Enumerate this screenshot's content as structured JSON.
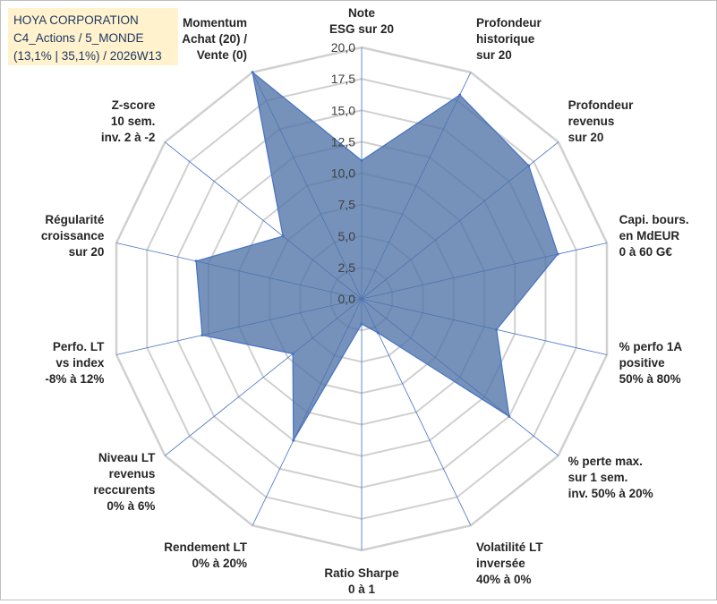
{
  "title_box": {
    "line1": "HOYA CORPORATION",
    "line2": "C4_Actions / 5_MONDE",
    "line3": "(13,1% | 35,1%) / 2026W13"
  },
  "colors": {
    "grid": "#d0d0d0",
    "spoke": "#4472c4",
    "fill": "#4f73a8",
    "stroke": "#4472c4",
    "label": "#262626",
    "title_bg": "#fff2cc",
    "title_text": "#1f3864"
  },
  "chart_data": {
    "type": "radar",
    "title": "",
    "rmin": 0,
    "rmax": 20,
    "tick_step": 2.5,
    "tick_labels": [
      "0,0",
      "2,5",
      "5,0",
      "7,5",
      "10,0",
      "12,5",
      "15,0",
      "17,5",
      "20,0"
    ],
    "axes": [
      {
        "lines": [
          "Note",
          "ESG sur 20"
        ]
      },
      {
        "lines": [
          "Profondeur",
          "historique",
          "sur 20"
        ]
      },
      {
        "lines": [
          "Profondeur",
          "revenus",
          "sur 20"
        ]
      },
      {
        "lines": [
          "Capi. bours.",
          "en MdEUR",
          "0 à 60 G€"
        ]
      },
      {
        "lines": [
          "% perfo 1A",
          "positive",
          "50% à 80%"
        ]
      },
      {
        "lines": [
          "% perte max.",
          "sur 1 sem.",
          "inv. 50% à 20%"
        ]
      },
      {
        "lines": [
          "Volatilité LT",
          "inversée",
          "40% à 0%"
        ]
      },
      {
        "lines": [
          "Ratio Sharpe",
          "0 à 1"
        ]
      },
      {
        "lines": [
          "Rendement LT",
          "0% à 20%"
        ]
      },
      {
        "lines": [
          "Niveau LT",
          "revenus",
          "reccurents",
          "0% à 6%"
        ]
      },
      {
        "lines": [
          "Perfo. LT",
          "vs index",
          "-8% à 12%"
        ]
      },
      {
        "lines": [
          "Régularité",
          "croissance",
          "sur 20"
        ]
      },
      {
        "lines": [
          "Z-score",
          "10 sem.",
          "inv. 2 à -2"
        ]
      },
      {
        "lines": [
          "Momentum",
          "Achat (20) /",
          "Vente (0)"
        ]
      }
    ],
    "series": [
      {
        "name": "HOYA CORPORATION",
        "values": [
          11.0,
          18.0,
          17.0,
          16.0,
          11.0,
          15.0,
          3.0,
          2.0,
          12.5,
          7.0,
          13.0,
          13.5,
          8.0,
          20.0
        ]
      }
    ]
  }
}
